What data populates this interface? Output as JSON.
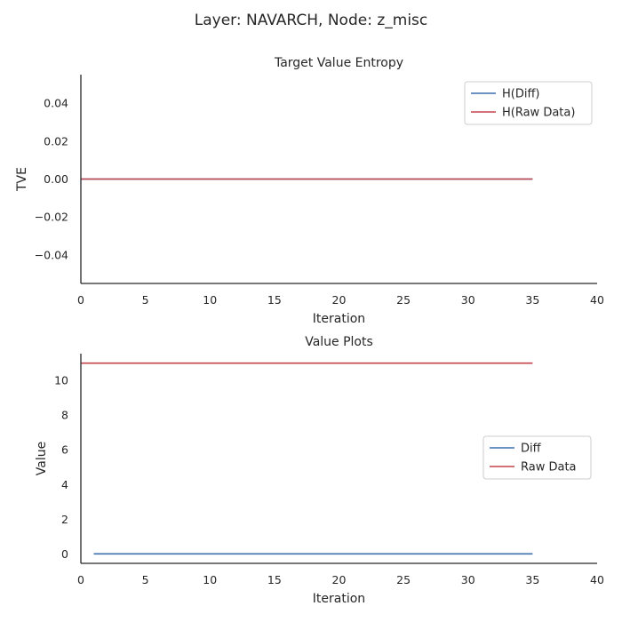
{
  "suptitle": "Layer: NAVARCH, Node: z_misc",
  "colors": {
    "diff": "#3b6fad",
    "raw": "#c4434b",
    "axis": "#262626"
  },
  "chart_data": [
    {
      "type": "line",
      "title": "Target Value Entropy",
      "xlabel": "Iteration",
      "ylabel": "TVE",
      "xlim": [
        0,
        40
      ],
      "ylim": [
        -0.055,
        0.055
      ],
      "xticks": [
        0,
        5,
        10,
        15,
        20,
        25,
        30,
        35,
        40
      ],
      "xtick_labels": [
        "0",
        "5",
        "10",
        "15",
        "20",
        "25",
        "30",
        "35",
        "40"
      ],
      "yticks": [
        0.04,
        0.02,
        0.0,
        -0.02,
        -0.04
      ],
      "ytick_labels": [
        "0.04",
        "0.02",
        "0.00",
        "−0.02",
        "−0.04"
      ],
      "legend_position": "top-right",
      "series": [
        {
          "name": "H(Diff)",
          "color_key": "diff",
          "x": [
            0,
            35
          ],
          "y": [
            0,
            0
          ]
        },
        {
          "name": "H(Raw Data)",
          "color_key": "raw",
          "x": [
            0,
            35
          ],
          "y": [
            0,
            0
          ]
        }
      ]
    },
    {
      "type": "line",
      "title": "Value Plots",
      "xlabel": "Iteration",
      "ylabel": "Value",
      "xlim": [
        0,
        40
      ],
      "ylim": [
        -0.55,
        11.55
      ],
      "xticks": [
        0,
        5,
        10,
        15,
        20,
        25,
        30,
        35,
        40
      ],
      "xtick_labels": [
        "0",
        "5",
        "10",
        "15",
        "20",
        "25",
        "30",
        "35",
        "40"
      ],
      "yticks": [
        0,
        2,
        4,
        6,
        8,
        10
      ],
      "ytick_labels": [
        "0",
        "2",
        "4",
        "6",
        "8",
        "10"
      ],
      "legend_position": "center-right",
      "series": [
        {
          "name": "Diff",
          "color_key": "diff",
          "x": [
            1,
            35
          ],
          "y": [
            0,
            0
          ]
        },
        {
          "name": "Raw Data",
          "color_key": "raw",
          "x": [
            0,
            35
          ],
          "y": [
            11,
            11
          ]
        }
      ]
    }
  ]
}
